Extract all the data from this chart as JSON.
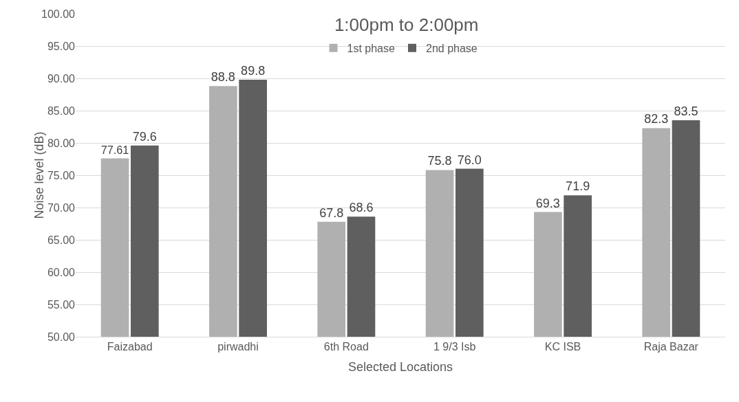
{
  "chart_data": {
    "type": "bar",
    "title": "1:00pm to 2:00pm",
    "xlabel": "Selected Locations",
    "ylabel": "Noise level (dB)",
    "categories": [
      "Faizabad",
      "pirwadhi",
      "6th Road",
      "1 9/3 Isb",
      "KC ISB",
      "Raja Bazar"
    ],
    "series": [
      {
        "name": "1st phase",
        "color": "#b0b0b0",
        "values": [
          77.61,
          88.8,
          67.8,
          75.8,
          69.3,
          82.3
        ],
        "value_labels": [
          "77.61",
          "88.8",
          "67.8",
          "75.8",
          "69.3",
          "82.3"
        ]
      },
      {
        "name": "2nd phase",
        "color": "#5f5f5f",
        "values": [
          79.6,
          89.8,
          68.6,
          76.0,
          71.9,
          83.5
        ],
        "value_labels": [
          "79.6",
          "89.8",
          "68.6",
          "76.0",
          "71.9",
          "83.5"
        ]
      }
    ],
    "ylim": [
      50,
      100
    ],
    "yticks": [
      {
        "value": 50,
        "label": "50.00"
      },
      {
        "value": 55,
        "label": "55.00"
      },
      {
        "value": 60,
        "label": "60.00"
      },
      {
        "value": 65,
        "label": "65.00"
      },
      {
        "value": 70,
        "label": "70.00"
      },
      {
        "value": 75,
        "label": "75.00"
      },
      {
        "value": 80,
        "label": "80.00"
      },
      {
        "value": 85,
        "label": "85.00"
      },
      {
        "value": 90,
        "label": "90.00"
      },
      {
        "value": 95,
        "label": "95.00"
      },
      {
        "value": 100,
        "label": "100.00"
      }
    ],
    "grid": "y",
    "legend": "top"
  }
}
